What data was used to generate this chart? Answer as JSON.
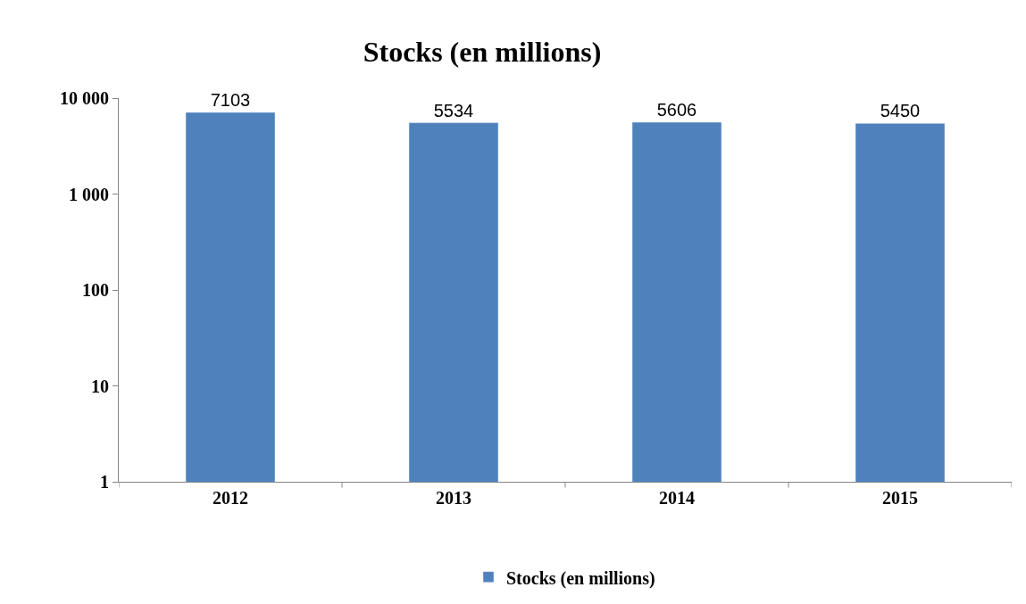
{
  "chart_data": {
    "type": "bar",
    "title": "Stocks (en millions)",
    "categories": [
      "2012",
      "2013",
      "2014",
      "2015"
    ],
    "series": [
      {
        "name": "Stocks (en millions)",
        "color": "#4f81bd",
        "values": [
          7103,
          5534,
          5606,
          5450
        ]
      }
    ],
    "log": true,
    "ylim": [
      1,
      10000
    ],
    "yticks": [
      1,
      10,
      100,
      {
        "value": 1000,
        "label": "1 000"
      },
      {
        "value": 10000,
        "label": "10 000"
      }
    ],
    "data_labels": true,
    "grid": false,
    "legend": "bottom"
  }
}
